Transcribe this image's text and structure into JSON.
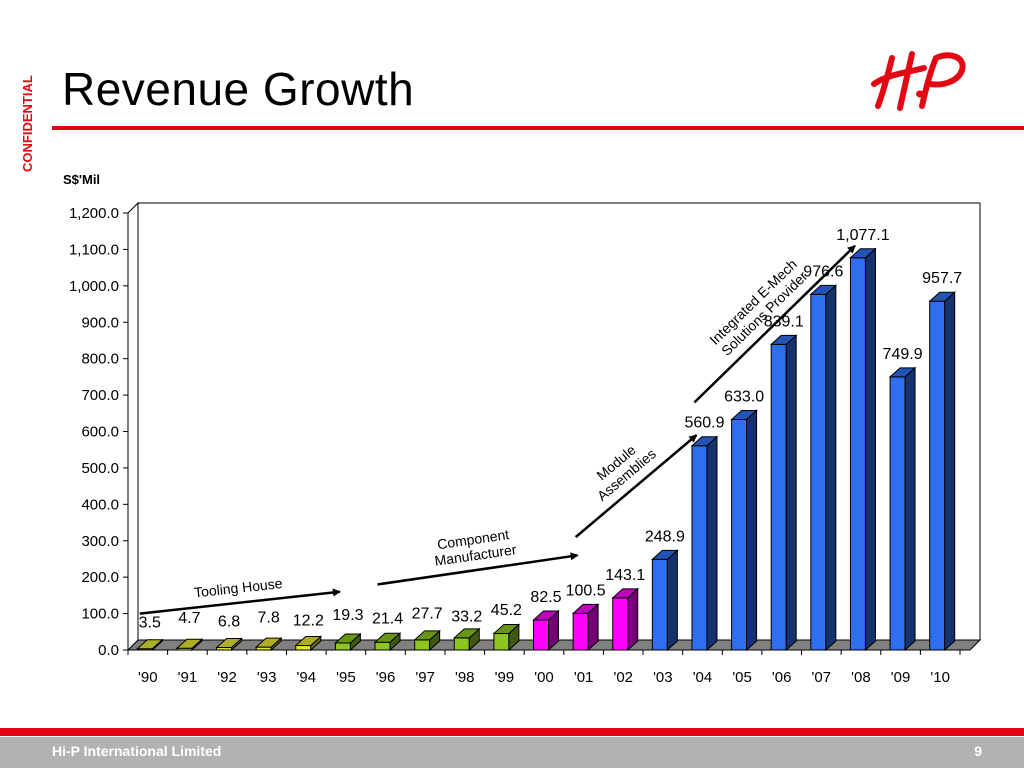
{
  "slide": {
    "confidential": "CONFIDENTIAL",
    "title": "Revenue Growth",
    "footer_company": "Hi-P International Limited",
    "page_number": "9",
    "logo_icon": "hi-p-logo-icon",
    "accent_color": "#e30613"
  },
  "chart_data": {
    "type": "bar",
    "unit_label": "S$'Mil",
    "categories": [
      "'90",
      "'91",
      "'92",
      "'93",
      "'94",
      "'95",
      "'96",
      "'97",
      "'98",
      "'99",
      "'00",
      "'01",
      "'02",
      "'03",
      "'04",
      "'05",
      "'06",
      "'07",
      "'08",
      "'09",
      "'10"
    ],
    "values": [
      3.5,
      4.7,
      6.8,
      7.8,
      12.2,
      19.3,
      21.4,
      27.7,
      33.2,
      45.2,
      82.5,
      100.5,
      143.1,
      248.9,
      560.9,
      633.0,
      839.1,
      976.6,
      1077.1,
      749.9,
      957.7
    ],
    "value_labels": [
      "3.5",
      "4.7",
      "6.8",
      "7.8",
      "12.2",
      "19.3",
      "21.4",
      "27.7",
      "33.2",
      "45.2",
      "82.5",
      "100.5",
      "143.1",
      "248.9",
      "560.9",
      "633.0",
      "839.1",
      "976.6",
      "1,077.1",
      "749.9",
      "957.7"
    ],
    "bar_colors": [
      "#e6e632",
      "#e6e632",
      "#e6e632",
      "#e6e632",
      "#e6e632",
      "#8cc61e",
      "#8cc61e",
      "#8cc61e",
      "#8cc61e",
      "#8cc61e",
      "#ff00ff",
      "#ff00ff",
      "#ff00ff",
      "#2f6fef",
      "#2f6fef",
      "#2f6fef",
      "#2f6fef",
      "#2f6fef",
      "#2f6fef",
      "#2f6fef",
      "#2f6fef"
    ],
    "ylim": [
      0,
      1200
    ],
    "yticks": [
      0,
      100,
      200,
      300,
      400,
      500,
      600,
      700,
      800,
      900,
      1000,
      1100,
      1200
    ],
    "ytick_labels": [
      "0.0",
      "100.0",
      "200.0",
      "300.0",
      "400.0",
      "500.0",
      "600.0",
      "700.0",
      "800.0",
      "900.0",
      "1,000.0",
      "1,100.0",
      "1,200.0"
    ],
    "grid": false,
    "annotations": [
      {
        "text": "Tooling House",
        "from_category": "'90",
        "to_category": "'95",
        "from_value": 100,
        "to_value": 160
      },
      {
        "text": "Component\nManufacturer",
        "from_category": "'96",
        "to_category": "'01",
        "from_value": 180,
        "to_value": 260
      },
      {
        "text": "Module\nAssemblies",
        "from_category": "'01",
        "to_category": "'04",
        "from_value": 310,
        "to_value": 590
      },
      {
        "text": "Integrated E-Mech\nSolutions Provider",
        "from_category": "'04",
        "to_category": "'08",
        "from_value": 680,
        "to_value": 1110
      }
    ]
  }
}
